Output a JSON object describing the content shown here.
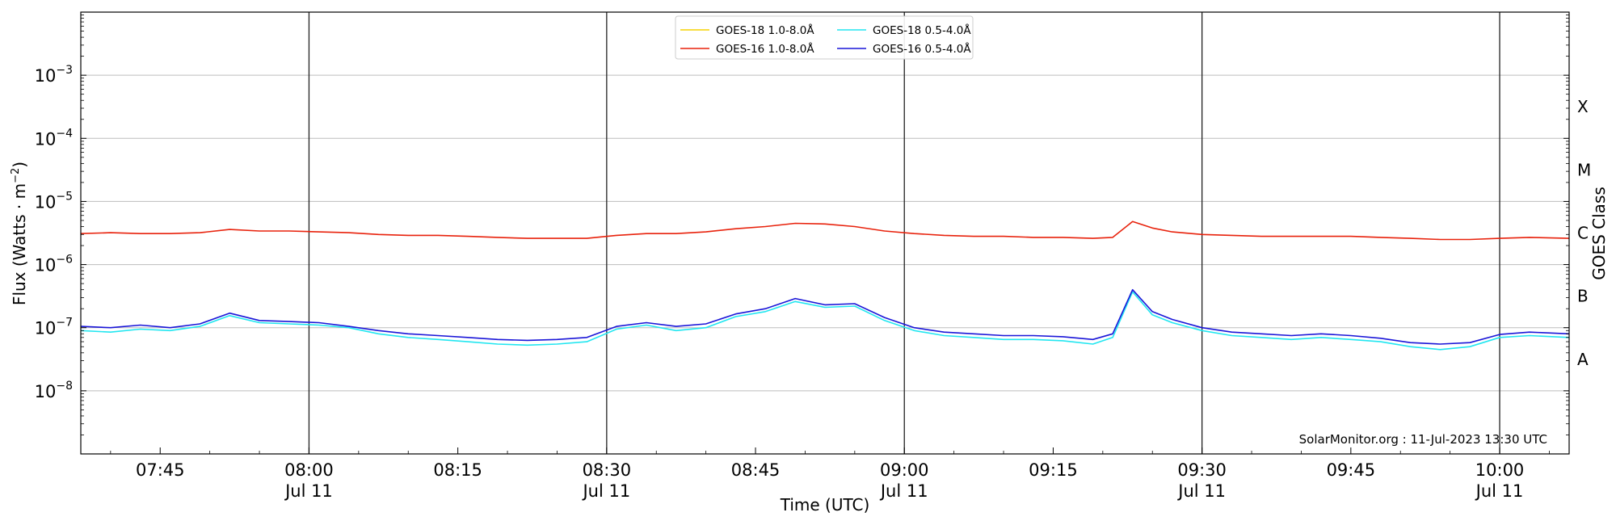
{
  "chart_data": {
    "type": "line",
    "xlabel": "Time (UTC)",
    "ylabel_main": "Flux (Watts · m",
    "ylabel_exp": "−2",
    "ylabel_close": ")",
    "right_label": "GOES Class",
    "yscale": "log",
    "ylim": [
      1e-09,
      0.01
    ],
    "xlim": [
      "07:37",
      "10:07"
    ],
    "x_ticks": [
      {
        "t": "07:45",
        "label": "07:45",
        "sub": ""
      },
      {
        "t": "08:00",
        "label": "08:00",
        "sub": "Jul 11"
      },
      {
        "t": "08:15",
        "label": "08:15",
        "sub": ""
      },
      {
        "t": "08:30",
        "label": "08:30",
        "sub": "Jul 11"
      },
      {
        "t": "08:45",
        "label": "08:45",
        "sub": ""
      },
      {
        "t": "09:00",
        "label": "09:00",
        "sub": "Jul 11"
      },
      {
        "t": "09:15",
        "label": "09:15",
        "sub": ""
      },
      {
        "t": "09:30",
        "label": "09:30",
        "sub": "Jul 11"
      },
      {
        "t": "09:45",
        "label": "09:45",
        "sub": ""
      },
      {
        "t": "10:00",
        "label": "10:00",
        "sub": "Jul 11"
      }
    ],
    "y_ticks": [
      {
        "v": 1e-08,
        "exp": "−8"
      },
      {
        "v": 1e-07,
        "exp": "−7"
      },
      {
        "v": 1e-06,
        "exp": "−6"
      },
      {
        "v": 1e-05,
        "exp": "−5"
      },
      {
        "v": 0.0001,
        "exp": "−4"
      },
      {
        "v": 0.001,
        "exp": "−3"
      }
    ],
    "y_tick_base": "10",
    "goes_classes": [
      {
        "label": "A",
        "v": 3.16e-08
      },
      {
        "label": "B",
        "v": 3.16e-07
      },
      {
        "label": "C",
        "v": 3.16e-06
      },
      {
        "label": "M",
        "v": 3.16e-05
      },
      {
        "label": "X",
        "v": 0.000316
      }
    ],
    "day_lines": [
      "08:00",
      "08:30",
      "09:00",
      "09:30",
      "10:00"
    ],
    "grid": "horizontal at decades",
    "legend_position": "top-center",
    "annotation": "SolarMonitor.org : 11-Jul-2023 13:30 UTC",
    "series": [
      {
        "name": "GOES-18 1.0-8.0Å",
        "color": "#f5d200",
        "x": [],
        "values": []
      },
      {
        "name": "GOES-16 1.0-8.0Å",
        "color": "#e8220c",
        "x": [
          "07:37",
          "07:40",
          "07:43",
          "07:46",
          "07:49",
          "07:52",
          "07:55",
          "07:58",
          "08:01",
          "08:04",
          "08:07",
          "08:10",
          "08:13",
          "08:16",
          "08:19",
          "08:22",
          "08:25",
          "08:28",
          "08:31",
          "08:34",
          "08:37",
          "08:40",
          "08:43",
          "08:46",
          "08:49",
          "08:52",
          "08:55",
          "08:58",
          "09:01",
          "09:04",
          "09:07",
          "09:10",
          "09:13",
          "09:16",
          "09:19",
          "09:21",
          "09:23",
          "09:25",
          "09:27",
          "09:30",
          "09:33",
          "09:36",
          "09:39",
          "09:42",
          "09:45",
          "09:48",
          "09:51",
          "09:54",
          "09:57",
          "10:00",
          "10:03",
          "10:07"
        ],
        "values": [
          3.1e-06,
          3.2e-06,
          3.1e-06,
          3.1e-06,
          3.2e-06,
          3.6e-06,
          3.4e-06,
          3.4e-06,
          3.3e-06,
          3.2e-06,
          3e-06,
          2.9e-06,
          2.9e-06,
          2.8e-06,
          2.7e-06,
          2.6e-06,
          2.6e-06,
          2.6e-06,
          2.9e-06,
          3.1e-06,
          3.1e-06,
          3.3e-06,
          3.7e-06,
          4e-06,
          4.5e-06,
          4.4e-06,
          4e-06,
          3.4e-06,
          3.1e-06,
          2.9e-06,
          2.8e-06,
          2.8e-06,
          2.7e-06,
          2.7e-06,
          2.6e-06,
          2.7e-06,
          4.8e-06,
          3.8e-06,
          3.3e-06,
          3e-06,
          2.9e-06,
          2.8e-06,
          2.8e-06,
          2.8e-06,
          2.8e-06,
          2.7e-06,
          2.6e-06,
          2.5e-06,
          2.5e-06,
          2.6e-06,
          2.7e-06,
          2.6e-06
        ]
      },
      {
        "name": "GOES-18 0.5-4.0Å",
        "color": "#22e6f0",
        "x": [
          "07:37",
          "07:40",
          "07:43",
          "07:46",
          "07:49",
          "07:52",
          "07:55",
          "07:58",
          "08:01",
          "08:04",
          "08:07",
          "08:10",
          "08:13",
          "08:16",
          "08:19",
          "08:22",
          "08:25",
          "08:28",
          "08:31",
          "08:34",
          "08:37",
          "08:40",
          "08:43",
          "08:46",
          "08:49",
          "08:52",
          "08:55",
          "08:58",
          "09:01",
          "09:04",
          "09:07",
          "09:10",
          "09:13",
          "09:16",
          "09:19",
          "09:21",
          "09:23",
          "09:25",
          "09:27",
          "09:30",
          "09:33",
          "09:36",
          "09:39",
          "09:42",
          "09:45",
          "09:48",
          "09:51",
          "09:54",
          "09:57",
          "10:00",
          "10:03",
          "10:07"
        ],
        "values": [
          9e-08,
          8.5e-08,
          9.5e-08,
          9e-08,
          1.05e-07,
          1.55e-07,
          1.2e-07,
          1.15e-07,
          1.1e-07,
          1e-07,
          8e-08,
          7e-08,
          6.5e-08,
          6e-08,
          5.5e-08,
          5.3e-08,
          5.5e-08,
          6e-08,
          9.5e-08,
          1.1e-07,
          9e-08,
          1e-07,
          1.5e-07,
          1.8e-07,
          2.6e-07,
          2.1e-07,
          2.2e-07,
          1.3e-07,
          9e-08,
          7.5e-08,
          7e-08,
          6.5e-08,
          6.5e-08,
          6.2e-08,
          5.5e-08,
          7e-08,
          3.7e-07,
          1.6e-07,
          1.2e-07,
          9e-08,
          7.5e-08,
          7e-08,
          6.5e-08,
          7e-08,
          6.5e-08,
          6e-08,
          5e-08,
          4.5e-08,
          5e-08,
          7e-08,
          7.5e-08,
          7e-08
        ]
      },
      {
        "name": "GOES-16 0.5-4.0Å",
        "color": "#1a16d8",
        "x": [
          "07:37",
          "07:40",
          "07:43",
          "07:46",
          "07:49",
          "07:52",
          "07:55",
          "07:58",
          "08:01",
          "08:04",
          "08:07",
          "08:10",
          "08:13",
          "08:16",
          "08:19",
          "08:22",
          "08:25",
          "08:28",
          "08:31",
          "08:34",
          "08:37",
          "08:40",
          "08:43",
          "08:46",
          "08:49",
          "08:52",
          "08:55",
          "08:58",
          "09:01",
          "09:04",
          "09:07",
          "09:10",
          "09:13",
          "09:16",
          "09:19",
          "09:21",
          "09:23",
          "09:25",
          "09:27",
          "09:30",
          "09:33",
          "09:36",
          "09:39",
          "09:42",
          "09:45",
          "09:48",
          "09:51",
          "09:54",
          "09:57",
          "10:00",
          "10:03",
          "10:07"
        ],
        "values": [
          1.05e-07,
          1e-07,
          1.1e-07,
          1e-07,
          1.15e-07,
          1.7e-07,
          1.3e-07,
          1.25e-07,
          1.2e-07,
          1.05e-07,
          9e-08,
          8e-08,
          7.5e-08,
          7e-08,
          6.5e-08,
          6.3e-08,
          6.5e-08,
          7e-08,
          1.05e-07,
          1.2e-07,
          1.05e-07,
          1.15e-07,
          1.65e-07,
          2e-07,
          2.9e-07,
          2.3e-07,
          2.4e-07,
          1.45e-07,
          1e-07,
          8.5e-08,
          8e-08,
          7.5e-08,
          7.5e-08,
          7.2e-08,
          6.5e-08,
          8e-08,
          4e-07,
          1.8e-07,
          1.35e-07,
          1e-07,
          8.5e-08,
          8e-08,
          7.5e-08,
          8e-08,
          7.5e-08,
          6.8e-08,
          5.8e-08,
          5.5e-08,
          5.8e-08,
          7.8e-08,
          8.5e-08,
          8e-08
        ]
      }
    ]
  }
}
